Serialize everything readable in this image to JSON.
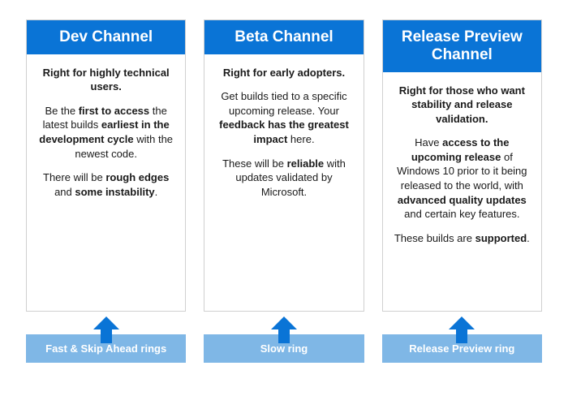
{
  "colors": {
    "header_bg": "#0a74d6",
    "header_text": "#ffffff",
    "card_border": "#d0d0d0",
    "body_text": "#1a1a1a",
    "arrow": "#0a74d6",
    "footer_bg": "#7fb7e6",
    "footer_text": "#ffffff",
    "page_bg": "#ffffff"
  },
  "layout": {
    "header_fontsize": 19,
    "body_fontsize": 13,
    "footer_fontsize": 13,
    "card_min_height": 360
  },
  "cards": [
    {
      "title": "Dev Channel",
      "lead": "Right for highly technical users.",
      "para1_pre": "Be the ",
      "para1_b1": "first to access",
      "para1_mid": " the latest builds ",
      "para1_b2": "earliest in the development cycle",
      "para1_post": " with the newest code.",
      "para2_pre": "There will be ",
      "para2_b1": "rough edges",
      "para2_mid": " and ",
      "para2_b2": "some instability",
      "para2_post": ".",
      "para3_pre": "",
      "para3_b1": "",
      "para3_mid": "",
      "para3_b2": "",
      "para3_post": "",
      "footer": "Fast & Skip Ahead rings"
    },
    {
      "title": "Beta Channel",
      "lead": "Right for early adopters.",
      "para1_pre": "Get builds tied to a specific upcoming release. Your ",
      "para1_b1": "feedback has the greatest impact",
      "para1_mid": " here.",
      "para1_b2": "",
      "para1_post": "",
      "para2_pre": "These will be ",
      "para2_b1": "reliable",
      "para2_mid": " with updates validated by Microsoft.",
      "para2_b2": "",
      "para2_post": "",
      "para3_pre": "",
      "para3_b1": "",
      "para3_mid": "",
      "para3_b2": "",
      "para3_post": "",
      "footer": "Slow ring"
    },
    {
      "title": "Release Preview Channel",
      "lead": "Right for those who want stability and release validation.",
      "para1_pre": "Have ",
      "para1_b1": "access to the upcoming release",
      "para1_mid": " of Windows 10 prior to it being released to the world, with ",
      "para1_b2": "advanced quality updates",
      "para1_post": " and certain key features.",
      "para2_pre": "These builds are ",
      "para2_b1": "supported",
      "para2_mid": ".",
      "para2_b2": "",
      "para2_post": "",
      "para3_pre": "",
      "para3_b1": "",
      "para3_mid": "",
      "para3_b2": "",
      "para3_post": "",
      "footer": "Release Preview ring"
    }
  ]
}
